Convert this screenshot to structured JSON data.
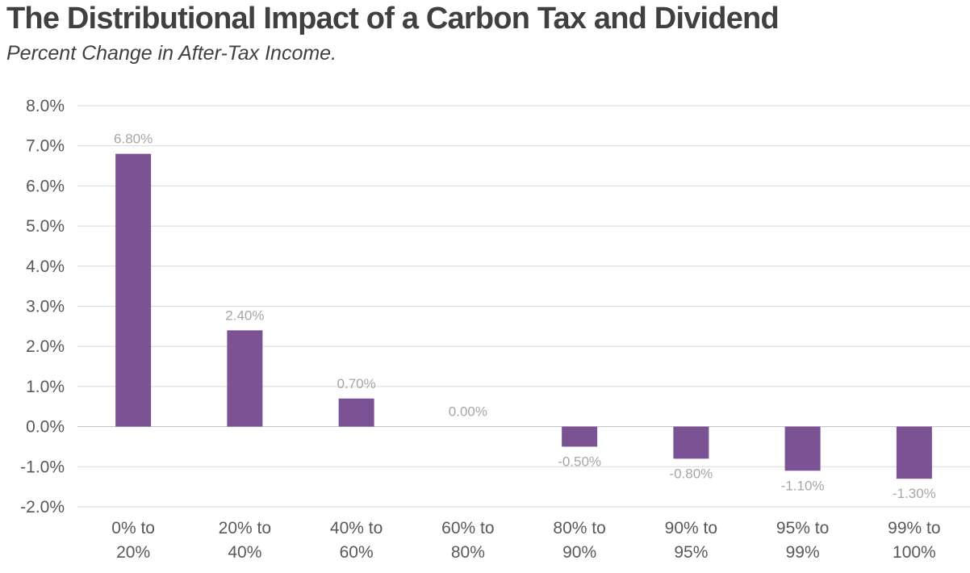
{
  "chart_data": {
    "type": "bar",
    "title": "The Distributional Impact of a Carbon Tax and Dividend",
    "subtitle": "Percent Change in After-Tax Income.",
    "xlabel": "",
    "ylabel": "",
    "ylim": [
      -2.0,
      8.0
    ],
    "ytick_step": 1.0,
    "ytick_labels": [
      "-2.0%",
      "-1.0%",
      "0.0%",
      "1.0%",
      "2.0%",
      "3.0%",
      "4.0%",
      "5.0%",
      "6.0%",
      "7.0%",
      "8.0%"
    ],
    "grid": true,
    "categories": [
      [
        "0% to",
        "20%"
      ],
      [
        "20% to",
        "40%"
      ],
      [
        "40% to",
        "60%"
      ],
      [
        "60% to",
        "80%"
      ],
      [
        "80% to",
        "90%"
      ],
      [
        "90% to",
        "95%"
      ],
      [
        "95% to",
        "99%"
      ],
      [
        "99% to",
        "100%"
      ]
    ],
    "values": [
      6.8,
      2.4,
      0.7,
      0.0,
      -0.5,
      -0.8,
      -1.1,
      -1.3
    ],
    "data_labels": [
      "6.80%",
      "2.40%",
      "0.70%",
      "0.00%",
      "-0.50%",
      "-0.80%",
      "-1.10%",
      "-1.30%"
    ],
    "bar_color": "#7b5394",
    "grid_color": "#d9d9d9",
    "label_color": "#a6a6a6",
    "text_color": "#595959"
  }
}
